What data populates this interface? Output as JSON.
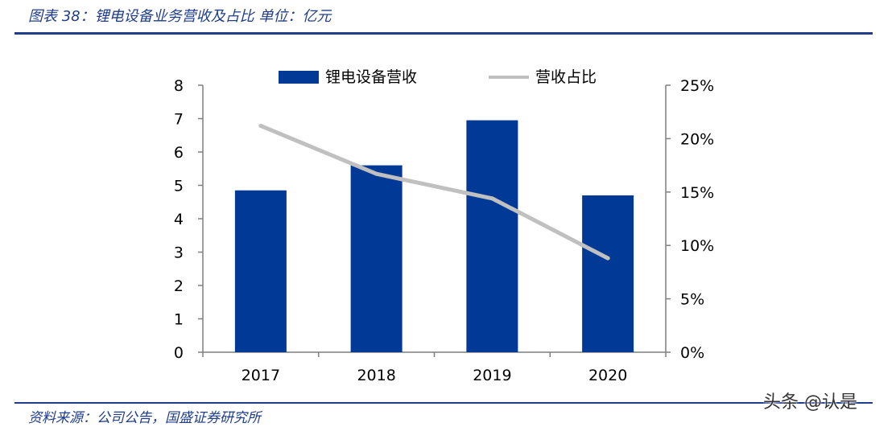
{
  "header": {
    "title": "图表 38：锂电设备业务营收及占比  单位：亿元"
  },
  "footer": {
    "source": "资料来源：公司公告，国盛证券研究所"
  },
  "watermark": {
    "text": "头条 @认是"
  },
  "colors": {
    "bar": "#003a96",
    "line": "#c0c0c0",
    "rule": "#1f3d8a",
    "axis": "#7f7f7f"
  },
  "chart_data": {
    "type": "bar",
    "categories": [
      "2017",
      "2018",
      "2019",
      "2020"
    ],
    "series": [
      {
        "name": "锂电设备营收",
        "type": "bar",
        "axis": "left",
        "values": [
          4.85,
          5.6,
          6.95,
          4.7
        ]
      },
      {
        "name": "营收占比",
        "type": "line",
        "axis": "right",
        "values": [
          0.212,
          0.167,
          0.144,
          0.088
        ]
      }
    ],
    "y_left": {
      "ylim": [
        0,
        8
      ],
      "ticks": [
        "0",
        "1",
        "2",
        "3",
        "4",
        "5",
        "6",
        "7",
        "8"
      ]
    },
    "y_right": {
      "ylim": [
        0,
        0.25
      ],
      "ticks": [
        "0%",
        "5%",
        "10%",
        "15%",
        "20%",
        "25%"
      ]
    },
    "legend": "top-center",
    "grid": false
  }
}
